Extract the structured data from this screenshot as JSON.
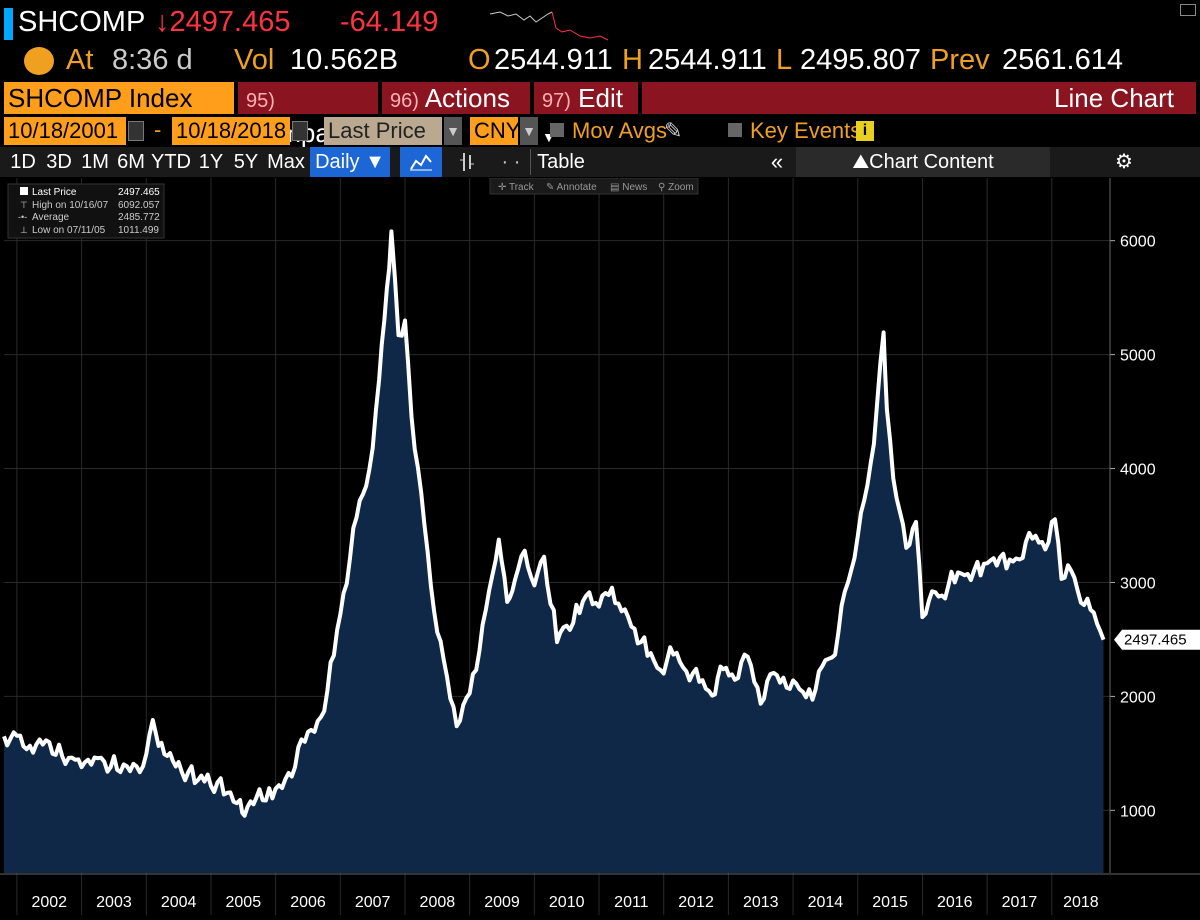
{
  "header": {
    "ticker": "SHCOMP",
    "last_arrow": "↓",
    "last_price": "2497.465",
    "change": "-64.149",
    "at_label": "At",
    "time": "8:36 d",
    "vol_label": "Vol",
    "vol": "10.562B",
    "open_label": "O",
    "open": "2544.911",
    "high_label": "H",
    "high": "2544.911",
    "low_label": "L",
    "low": "2495.807",
    "prev_label": "Prev",
    "prev": "2561.614"
  },
  "toolbar": {
    "security": "SHCOMP Index",
    "compare_num": "95)",
    "compare_label": "Compare",
    "actions_num": "96)",
    "actions_label": "Actions",
    "edit_num": "97)",
    "edit_label": "Edit",
    "chart_type": "Line Chart"
  },
  "controls": {
    "start_date": "10/18/2001",
    "date_sep": "-",
    "end_date": "10/18/2018",
    "field": "Last Price",
    "currency": "CNY",
    "mov_avgs": "Mov Avgs",
    "key_events": "Key Events",
    "key_events_icon": "i"
  },
  "periods": {
    "items": [
      "1D",
      "3D",
      "1M",
      "6M",
      "YTD",
      "1Y",
      "5Y",
      "Max"
    ],
    "frequency": "Daily ▼",
    "table": "Table",
    "collapse": "«",
    "chart_content": "Chart Content"
  },
  "chart_tools": [
    "Track",
    "Annotate",
    "News",
    "Zoom"
  ],
  "legend": {
    "last_label": "Last Price",
    "last_value": "2497.465",
    "high_label": "High on 10/16/07",
    "high_value": "6092.057",
    "avg_label": "Average",
    "avg_value": "2485.772",
    "low_label": "Low on 07/11/05",
    "low_value": "1011.499"
  },
  "chart_data": {
    "type": "area",
    "series": [
      {
        "x": [
          2001.8,
          2002.0,
          2002.2,
          2002.45,
          2002.7,
          2002.9,
          2003.1,
          2003.3,
          2003.55,
          2003.8,
          2003.95,
          2004.1,
          2004.28,
          2004.5,
          2004.75,
          2004.95,
          2005.2,
          2005.45,
          2005.52,
          2005.75,
          2005.95,
          2006.2,
          2006.45,
          2006.7,
          2006.9,
          2007.05,
          2007.25,
          2007.45,
          2007.6,
          2007.72,
          2007.79,
          2007.9,
          2008.0,
          2008.1,
          2008.3,
          2008.45,
          2008.6,
          2008.8,
          2008.9,
          2009.1,
          2009.3,
          2009.45,
          2009.58,
          2009.7,
          2009.85,
          2010.0,
          2010.15,
          2010.35,
          2010.5,
          2010.7,
          2010.85,
          2011.0,
          2011.2,
          2011.35,
          2011.55,
          2011.75,
          2011.95,
          2012.15,
          2012.35,
          2012.55,
          2012.75,
          2012.92,
          2013.1,
          2013.3,
          2013.5,
          2013.7,
          2013.9,
          2014.1,
          2014.3,
          2014.5,
          2014.65,
          2014.8,
          2014.95,
          2015.1,
          2015.25,
          2015.4,
          2015.45,
          2015.55,
          2015.65,
          2015.75,
          2015.9,
          2016.0,
          2016.1,
          2016.3,
          2016.5,
          2016.7,
          2016.9,
          2017.1,
          2017.3,
          2017.5,
          2017.7,
          2017.9,
          2018.05,
          2018.15,
          2018.3,
          2018.45,
          2018.6,
          2018.7,
          2018.8
        ],
        "y": [
          1650,
          1650,
          1580,
          1600,
          1500,
          1420,
          1480,
          1430,
          1400,
          1370,
          1440,
          1750,
          1550,
          1380,
          1300,
          1270,
          1200,
          1050,
          1011.499,
          1150,
          1160,
          1300,
          1650,
          1800,
          2400,
          2900,
          3600,
          4000,
          4800,
          5600,
          6092.057,
          5200,
          5300,
          4500,
          3500,
          2800,
          2300,
          1800,
          1900,
          2300,
          2900,
          3450,
          2800,
          3100,
          3250,
          3050,
          3200,
          2550,
          2600,
          2800,
          2900,
          2850,
          2950,
          2800,
          2600,
          2400,
          2250,
          2400,
          2250,
          2150,
          2050,
          2250,
          2200,
          2350,
          2000,
          2200,
          2150,
          2050,
          2050,
          2300,
          2450,
          2900,
          3300,
          3700,
          4300,
          5178,
          4600,
          3900,
          3700,
          3300,
          3600,
          2700,
          2900,
          2900,
          3050,
          3100,
          3100,
          3250,
          3150,
          3250,
          3400,
          3350,
          3560,
          3100,
          3100,
          2900,
          2750,
          2720,
          2497.465
        ]
      }
    ],
    "x_ticks": [
      "2002",
      "2003",
      "2004",
      "2005",
      "2006",
      "2007",
      "2008",
      "2009",
      "2010",
      "2011",
      "2012",
      "2013",
      "2014",
      "2015",
      "2016",
      "2017",
      "2018"
    ],
    "y_ticks": [
      1000,
      2000,
      3000,
      4000,
      5000,
      6000
    ],
    "ylim": [
      450,
      6550
    ],
    "xlim": [
      2001.8,
      2018.9
    ],
    "last_label": "2497.465",
    "grid": true
  },
  "colors": {
    "line": "#ffffff",
    "fill": "#0f2847",
    "accent": "#f0a020",
    "down": "#ff3340"
  }
}
